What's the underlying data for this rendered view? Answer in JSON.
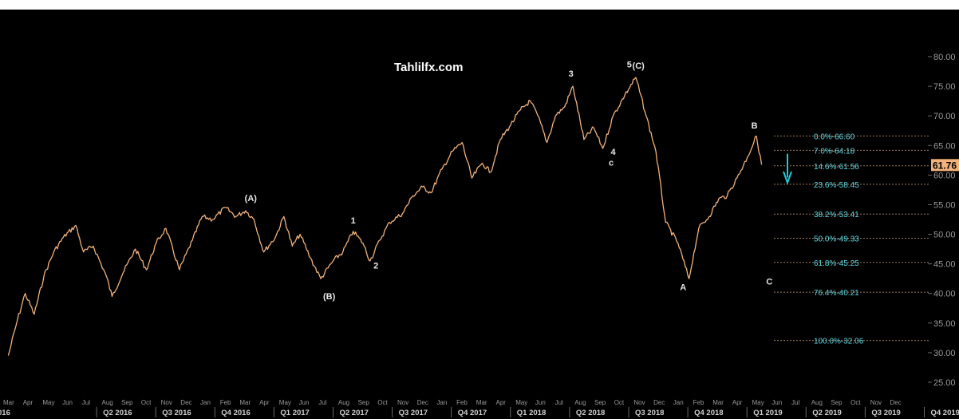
{
  "watermark": "Tahlilfx.com",
  "colors": {
    "background": "#000000",
    "price": "#f2b27a",
    "fib_label": "#5fd9e6",
    "fib_line": "#a07a55",
    "axis_text": "#9a9a9a",
    "wave_label": "#e8e8e8",
    "arrow": "#26c6da",
    "last_price_bg": "#f2b27a"
  },
  "chart_data": {
    "type": "line",
    "ylim": [
      25,
      80
    ],
    "y_ticks": [
      "25.00",
      "30.00",
      "35.00",
      "40.00",
      "45.00",
      "50.00",
      "55.00",
      "60.00",
      "65.00",
      "70.00",
      "75.00",
      "80.00"
    ],
    "last_price": "61.76",
    "x_month_labels": [
      "Mar",
      "Apr",
      "May",
      "Jun",
      "Jul",
      "Aug",
      "Sep",
      "Oct",
      "Nov",
      "Dec",
      "Jan",
      "Feb",
      "Mar",
      "Apr",
      "May",
      "Jun",
      "Jul",
      "Aug",
      "Sep",
      "Oct",
      "Nov",
      "Dec",
      "Jan",
      "Feb",
      "Mar",
      "Apr",
      "May",
      "Jun",
      "Jul",
      "Aug",
      "Sep",
      "Oct",
      "Nov",
      "Dec",
      "Jan",
      "Feb",
      "Mar",
      "Apr",
      "May",
      "Jun",
      "Jul",
      "Aug",
      "Sep",
      "Oct",
      "Nov",
      "Dec"
    ],
    "x_quarter_labels": [
      "016",
      "Q2 2016",
      "Q3 2016",
      "Q4 2016",
      "Q1 2017",
      "Q2 2017",
      "Q3 2017",
      "Q4 2017",
      "Q1 2018",
      "Q2 2018",
      "Q3 2018",
      "Q4 2018",
      "Q1 2019",
      "Q2 2019",
      "Q3 2019",
      "Q4 2019"
    ],
    "series": [
      {
        "x": [
          "2016-02-25",
          "2016-03-10",
          "2016-03-22",
          "2016-04-05",
          "2016-04-20",
          "2016-05-05",
          "2016-05-20",
          "2016-06-08",
          "2016-06-20",
          "2016-07-05",
          "2016-07-25",
          "2016-08-03",
          "2016-08-20",
          "2016-09-08",
          "2016-09-25",
          "2016-10-10",
          "2016-10-25",
          "2016-11-15",
          "2016-12-05",
          "2016-12-20",
          "2017-01-05",
          "2017-01-25",
          "2017-02-10",
          "2017-02-25",
          "2017-03-10",
          "2017-03-25",
          "2017-04-12",
          "2017-04-25",
          "2017-05-08",
          "2017-05-20",
          "2017-06-05",
          "2017-06-21",
          "2017-07-10",
          "2017-07-25",
          "2017-08-10",
          "2017-08-25",
          "2017-09-05",
          "2017-09-20",
          "2017-10-05",
          "2017-10-25",
          "2017-11-10",
          "2017-11-25",
          "2017-12-08",
          "2017-12-25",
          "2018-01-10",
          "2018-01-25",
          "2018-02-09",
          "2018-02-25",
          "2018-03-10",
          "2018-03-25",
          "2018-04-10",
          "2018-04-25",
          "2018-05-10",
          "2018-05-22",
          "2018-06-05",
          "2018-06-18",
          "2018-07-02",
          "2018-07-15",
          "2018-08-01",
          "2018-08-16",
          "2018-08-30",
          "2018-09-15",
          "2018-10-03",
          "2018-10-20",
          "2018-11-05",
          "2018-11-20",
          "2018-12-05",
          "2018-12-24",
          "2019-01-10",
          "2019-01-25",
          "2019-02-10",
          "2019-02-25",
          "2019-03-10",
          "2019-03-25",
          "2019-04-10",
          "2019-04-24",
          "2019-05-02"
        ],
        "y": [
          29.5,
          35.5,
          40.0,
          36.5,
          43.0,
          47.0,
          49.5,
          51.5,
          47.0,
          48.0,
          43.0,
          39.5,
          43.5,
          47.5,
          44.0,
          48.5,
          51.0,
          44.0,
          49.0,
          53.0,
          52.5,
          54.5,
          53.0,
          54.0,
          52.5,
          47.0,
          49.5,
          53.0,
          48.0,
          50.0,
          46.0,
          42.5,
          45.5,
          47.0,
          50.5,
          48.5,
          45.5,
          49.0,
          52.0,
          53.5,
          56.5,
          58.0,
          57.0,
          61.0,
          64.0,
          65.5,
          59.5,
          62.0,
          60.5,
          66.0,
          68.5,
          71.0,
          72.5,
          70.0,
          65.5,
          70.0,
          71.5,
          75.0,
          66.0,
          68.0,
          64.5,
          70.0,
          73.5,
          76.5,
          70.0,
          64.0,
          52.0,
          48.5,
          42.5,
          51.0,
          53.0,
          56.0,
          56.5,
          59.5,
          63.0,
          66.6,
          61.76
        ]
      }
    ],
    "fib_levels": [
      {
        "label": "0.0%",
        "value": "66.60"
      },
      {
        "label": "7.0%",
        "value": "64.18"
      },
      {
        "label": "14.6%",
        "value": "61.56"
      },
      {
        "label": "23.6%",
        "value": "58.45"
      },
      {
        "label": "38.2%",
        "value": "53.41"
      },
      {
        "label": "50.0%",
        "value": "49.33"
      },
      {
        "label": "61.8%",
        "value": "45.25"
      },
      {
        "label": "76.4%",
        "value": "40.21"
      },
      {
        "label": "100.0%",
        "value": "32.06"
      }
    ],
    "wave_labels": [
      {
        "text": "(A)",
        "x": "2017-03-05",
        "y": 55.6
      },
      {
        "text": "(B)",
        "x": "2017-07-04",
        "y": 39.0
      },
      {
        "text": "1",
        "x": "2017-08-10",
        "y": 51.8
      },
      {
        "text": "2",
        "x": "2017-09-14",
        "y": 44.2
      },
      {
        "text": "3",
        "x": "2018-07-12",
        "y": 76.6
      },
      {
        "text": "4",
        "x": "2018-09-15",
        "y": 63.4
      },
      {
        "text": "c",
        "x": "2018-09-12",
        "y": 61.6
      },
      {
        "text": "5",
        "x": "2018-10-10",
        "y": 78.2
      },
      {
        "text": "(C)",
        "x": "2018-10-24",
        "y": 78.0
      },
      {
        "text": "A",
        "x": "2019-01-01",
        "y": 40.6
      },
      {
        "text": "B",
        "x": "2019-04-21",
        "y": 67.9
      },
      {
        "text": "C",
        "x": "2019-05-14",
        "y": 41.5
      }
    ]
  }
}
